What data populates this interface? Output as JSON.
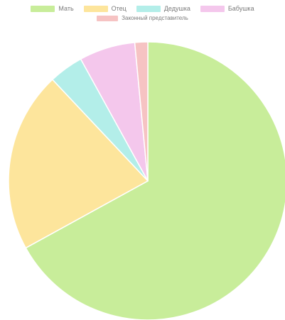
{
  "chart_data": {
    "type": "pie",
    "title": "",
    "legend_position": "top",
    "series": [
      {
        "slices": [
          {
            "label": "Мать",
            "value": 67,
            "color": "#c8ed9a"
          },
          {
            "label": "Отец",
            "value": 21,
            "color": "#fde59c"
          },
          {
            "label": "Дедушка",
            "value": 4,
            "color": "#b3eee9"
          },
          {
            "label": "Бабушка",
            "value": 6.5,
            "color": "#f4c7ec"
          },
          {
            "label": "Законный представитель",
            "value": 1.5,
            "color": "#f6c3c3"
          }
        ]
      }
    ]
  }
}
